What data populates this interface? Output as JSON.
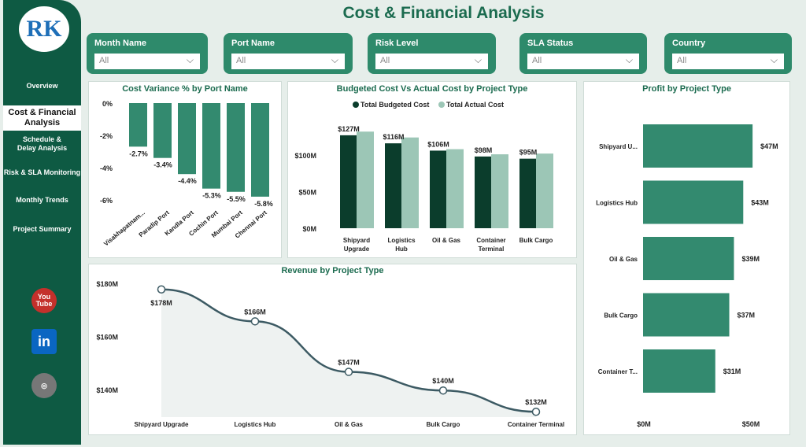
{
  "header": {
    "title": "Cost & Financial Analysis"
  },
  "sidebar": {
    "logo_text": "RK",
    "items": [
      {
        "label": "Overview"
      },
      {
        "label": "Cost & Financial Analysis",
        "active": true
      },
      {
        "label": "Schedule & Delay Analysis"
      },
      {
        "label": "Risk & SLA Monitoring"
      },
      {
        "label": "Monthly Trends"
      },
      {
        "label": "Project Summary"
      }
    ],
    "social": [
      {
        "icon": "youtube-icon",
        "label": "You\nTube",
        "color": "#c4302b"
      },
      {
        "icon": "linkedin-icon",
        "label": "in",
        "color": "#0a66c2"
      },
      {
        "icon": "globe-icon",
        "label": "◎",
        "color": "#777777"
      }
    ]
  },
  "filters": [
    {
      "label": "Month Name",
      "value": "All"
    },
    {
      "label": "Port Name",
      "value": "All"
    },
    {
      "label": "Risk Level",
      "value": "All"
    },
    {
      "label": "SLA Status",
      "value": "All"
    },
    {
      "label": "Country",
      "value": "All"
    }
  ],
  "colors": {
    "bar": "#338a6f",
    "budgeted": "#0b3d2c",
    "actual": "#9cc6b6",
    "sidebar": "#0e5a43",
    "title": "#1b6b4f"
  },
  "chart_data": [
    {
      "type": "bar",
      "title": "Cost Variance % by Port Name",
      "categories": [
        "Visakhapatnam...",
        "Paradip Port",
        "Kandla Port",
        "Cochin Port",
        "Mumbai Port",
        "Chennai Port"
      ],
      "values": [
        -2.7,
        -3.4,
        -4.4,
        -5.3,
        -5.5,
        -5.8
      ],
      "data_labels": [
        "-2.7%",
        "-3.4%",
        "-4.4%",
        "-5.3%",
        "-5.5%",
        "-5.8%"
      ],
      "yticks": [
        "0%",
        "-2%",
        "-4%",
        "-6%"
      ],
      "ylim": [
        -6,
        0
      ]
    },
    {
      "type": "bar",
      "title": "Budgeted Cost Vs Actual Cost by Project Type",
      "categories": [
        "Shipyard\nUpgrade",
        "Logistics\nHub",
        "Oil & Gas",
        "Container\nTerminal",
        "Bulk Cargo"
      ],
      "series": [
        {
          "name": "Total Budgeted Cost",
          "values": [
            127,
            116,
            106,
            98,
            95
          ],
          "data_labels": [
            "$127M",
            "$116M",
            "$106M",
            "$98M",
            "$95M"
          ]
        },
        {
          "name": "Total Actual Cost",
          "values": [
            132,
            124,
            108,
            101,
            102
          ]
        }
      ],
      "yticks": [
        "$0M",
        "$50M",
        "$100M"
      ],
      "ylim": [
        0,
        140
      ],
      "legend": "top"
    },
    {
      "type": "bar",
      "orientation": "horizontal",
      "title": "Profit by Project Type",
      "categories": [
        "Shipyard U...",
        "Logistics Hub",
        "Oil & Gas",
        "Bulk Cargo",
        "Container T..."
      ],
      "values": [
        47,
        43,
        39,
        37,
        31
      ],
      "data_labels": [
        "$47M",
        "$43M",
        "$39M",
        "$37M",
        "$31M"
      ],
      "xticks": [
        "$0M",
        "$50M"
      ],
      "xlim": [
        0,
        50
      ]
    },
    {
      "type": "line",
      "title": "Revenue by Project Type",
      "categories": [
        "Shipyard Upgrade",
        "Logistics Hub",
        "Oil & Gas",
        "Bulk Cargo",
        "Container Terminal"
      ],
      "values": [
        178,
        166,
        147,
        140,
        132
      ],
      "data_labels": [
        "$178M",
        "$166M",
        "$147M",
        "$140M",
        "$132M"
      ],
      "yticks": [
        "$180M",
        "$160M",
        "$140M"
      ],
      "ylim": [
        130,
        180
      ]
    }
  ]
}
